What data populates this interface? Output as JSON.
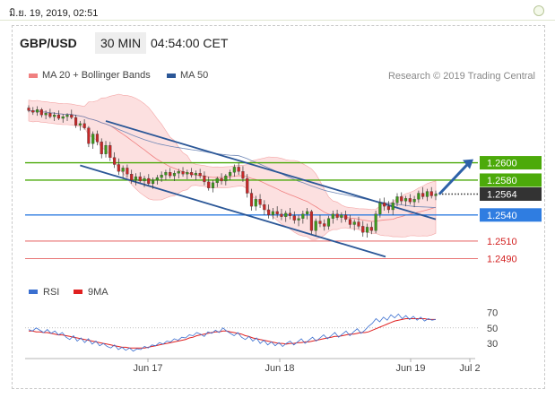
{
  "timestamp": "มิ.ย. 19, 2019, 02:51",
  "header": {
    "symbol": "GBP/USD",
    "timeframe": "30 MIN",
    "time": "04:54:00 CET"
  },
  "legend": {
    "ma20": {
      "label": "MA 20 + Bollinger Bands",
      "color": "#f08080"
    },
    "ma50": {
      "label": "MA 50",
      "color": "#2b5797"
    }
  },
  "credit": "Research © 2019 Trading Central",
  "chart_data": [
    {
      "type": "candlestick",
      "x_ticks": [
        "Jun 17",
        "Jun 18",
        "Jun 19",
        "Jul 2"
      ],
      "ylim": [
        1.2478,
        1.2684
      ],
      "candles_ohlc": [
        [
          1.2663,
          1.2666,
          1.2658,
          1.266
        ],
        [
          1.266,
          1.2664,
          1.2655,
          1.2658
        ],
        [
          1.2658,
          1.2665,
          1.2654,
          1.2661
        ],
        [
          1.2661,
          1.2663,
          1.2652,
          1.2655
        ],
        [
          1.2655,
          1.266,
          1.265,
          1.2657
        ],
        [
          1.2657,
          1.2662,
          1.2651,
          1.2653
        ],
        [
          1.2653,
          1.2658,
          1.2648,
          1.2655
        ],
        [
          1.2655,
          1.266,
          1.2649,
          1.2651
        ],
        [
          1.2651,
          1.2656,
          1.2646,
          1.2653
        ],
        [
          1.2653,
          1.2657,
          1.2648,
          1.2655
        ],
        [
          1.2655,
          1.2661,
          1.265,
          1.2652
        ],
        [
          1.2652,
          1.2655,
          1.264,
          1.2643
        ],
        [
          1.2643,
          1.2648,
          1.2637,
          1.2645
        ],
        [
          1.2645,
          1.265,
          1.2638,
          1.264
        ],
        [
          1.264,
          1.2642,
          1.2618,
          1.2622
        ],
        [
          1.2622,
          1.2636,
          1.2616,
          1.2633
        ],
        [
          1.2633,
          1.2637,
          1.262,
          1.2624
        ],
        [
          1.2624,
          1.2628,
          1.2605,
          1.261
        ],
        [
          1.261,
          1.2625,
          1.2606,
          1.262
        ],
        [
          1.262,
          1.2624,
          1.2602,
          1.2606
        ],
        [
          1.2606,
          1.2612,
          1.2594,
          1.2598
        ],
        [
          1.2598,
          1.2605,
          1.2586,
          1.259
        ],
        [
          1.259,
          1.2597,
          1.2582,
          1.2594
        ],
        [
          1.2594,
          1.2598,
          1.2583,
          1.2587
        ],
        [
          1.2587,
          1.2592,
          1.2576,
          1.258
        ],
        [
          1.258,
          1.2588,
          1.2574,
          1.2584
        ],
        [
          1.2584,
          1.2589,
          1.2577,
          1.2579
        ],
        [
          1.2579,
          1.2585,
          1.2572,
          1.2582
        ],
        [
          1.2582,
          1.2587,
          1.2574,
          1.2576
        ],
        [
          1.2576,
          1.2583,
          1.257,
          1.258
        ],
        [
          1.258,
          1.2586,
          1.2575,
          1.2583
        ],
        [
          1.2583,
          1.259,
          1.2578,
          1.2586
        ],
        [
          1.2586,
          1.2592,
          1.258,
          1.2589
        ],
        [
          1.2589,
          1.2594,
          1.2582,
          1.2585
        ],
        [
          1.2585,
          1.2591,
          1.2579,
          1.2588
        ],
        [
          1.2588,
          1.2593,
          1.2582,
          1.259
        ],
        [
          1.259,
          1.2595,
          1.2584,
          1.2587
        ],
        [
          1.2587,
          1.2592,
          1.2581,
          1.2589
        ],
        [
          1.2589,
          1.2594,
          1.2583,
          1.2586
        ],
        [
          1.2586,
          1.2591,
          1.258,
          1.2588
        ],
        [
          1.2588,
          1.2593,
          1.2582,
          1.2585
        ],
        [
          1.2585,
          1.259,
          1.2574,
          1.2578
        ],
        [
          1.2578,
          1.2584,
          1.2568,
          1.2571
        ],
        [
          1.2571,
          1.258,
          1.2566,
          1.2577
        ],
        [
          1.2577,
          1.2584,
          1.2572,
          1.2582
        ],
        [
          1.2582,
          1.2588,
          1.2575,
          1.2579
        ],
        [
          1.2579,
          1.2587,
          1.2574,
          1.2585
        ],
        [
          1.2585,
          1.2592,
          1.258,
          1.2589
        ],
        [
          1.2589,
          1.2598,
          1.2584,
          1.2595
        ],
        [
          1.2595,
          1.26,
          1.2586,
          1.259
        ],
        [
          1.259,
          1.2596,
          1.2578,
          1.2582
        ],
        [
          1.2582,
          1.2587,
          1.256,
          1.2565
        ],
        [
          1.2565,
          1.257,
          1.2545,
          1.255
        ],
        [
          1.255,
          1.2562,
          1.2545,
          1.2558
        ],
        [
          1.2558,
          1.2564,
          1.2548,
          1.2552
        ],
        [
          1.2552,
          1.2557,
          1.254,
          1.2546
        ],
        [
          1.2546,
          1.2552,
          1.2536,
          1.254
        ],
        [
          1.254,
          1.2548,
          1.2535,
          1.2544
        ],
        [
          1.2544,
          1.255,
          1.2537,
          1.2541
        ],
        [
          1.2541,
          1.2547,
          1.2534,
          1.2538
        ],
        [
          1.2538,
          1.2545,
          1.2532,
          1.2542
        ],
        [
          1.2542,
          1.2548,
          1.2535,
          1.2539
        ],
        [
          1.2539,
          1.2544,
          1.253,
          1.2534
        ],
        [
          1.2534,
          1.254,
          1.2527,
          1.2536
        ],
        [
          1.2536,
          1.2545,
          1.253,
          1.2541
        ],
        [
          1.2541,
          1.2548,
          1.2535,
          1.2544
        ],
        [
          1.2544,
          1.2546,
          1.2518,
          1.2522
        ],
        [
          1.2522,
          1.2536,
          1.2516,
          1.2533
        ],
        [
          1.2533,
          1.254,
          1.2526,
          1.253
        ],
        [
          1.253,
          1.2535,
          1.2522,
          1.2527
        ],
        [
          1.2527,
          1.2539,
          1.2523,
          1.2536
        ],
        [
          1.2536,
          1.2545,
          1.253,
          1.2541
        ],
        [
          1.2541,
          1.2546,
          1.2534,
          1.2537
        ],
        [
          1.2537,
          1.2543,
          1.2531,
          1.254
        ],
        [
          1.254,
          1.2545,
          1.2532,
          1.2535
        ],
        [
          1.2535,
          1.254,
          1.2525,
          1.2529
        ],
        [
          1.2529,
          1.2535,
          1.2522,
          1.2532
        ],
        [
          1.2532,
          1.2538,
          1.2524,
          1.2527
        ],
        [
          1.2527,
          1.2533,
          1.2515,
          1.252
        ],
        [
          1.252,
          1.253,
          1.2514,
          1.2526
        ],
        [
          1.2526,
          1.2532,
          1.2518,
          1.2522
        ],
        [
          1.2522,
          1.2545,
          1.2519,
          1.2541
        ],
        [
          1.2541,
          1.2559,
          1.2537,
          1.2554
        ],
        [
          1.2554,
          1.256,
          1.2545,
          1.255
        ],
        [
          1.255,
          1.2556,
          1.2542,
          1.2546
        ],
        [
          1.2546,
          1.2558,
          1.254,
          1.2554
        ],
        [
          1.2554,
          1.2565,
          1.255,
          1.2561
        ],
        [
          1.2561,
          1.2566,
          1.2552,
          1.2556
        ],
        [
          1.2556,
          1.2562,
          1.255,
          1.2559
        ],
        [
          1.2559,
          1.2564,
          1.2552,
          1.2555
        ],
        [
          1.2555,
          1.2562,
          1.2549,
          1.2558
        ],
        [
          1.2558,
          1.2568,
          1.2554,
          1.2565
        ],
        [
          1.2565,
          1.2572,
          1.2558,
          1.2561
        ],
        [
          1.2561,
          1.257,
          1.2556,
          1.2567
        ],
        [
          1.2567,
          1.2572,
          1.2559,
          1.2562
        ],
        [
          1.2562,
          1.2568,
          1.2557,
          1.2564
        ]
      ],
      "levels": [
        {
          "value": "1.2600",
          "color": "#4caa0a",
          "style": "solid"
        },
        {
          "value": "1.2580",
          "color": "#4caa0a",
          "style": "solid"
        },
        {
          "value": "1.2564",
          "color": "#333333",
          "style": "dotted"
        },
        {
          "value": "1.2540",
          "color": "#2f7de1",
          "style": "solid"
        },
        {
          "value": "1.2510",
          "color": "#e04848",
          "style": "solid"
        },
        {
          "value": "1.2490",
          "color": "#e04848",
          "style": "solid"
        }
      ],
      "forecast_arrow": {
        "from": 1.2564,
        "to": 1.2604
      }
    },
    {
      "type": "line",
      "legend": [
        {
          "name": "RSI",
          "color": "#3a6fd0"
        },
        {
          "name": "9MA",
          "color": "#e02020"
        }
      ],
      "y_ticks": [
        70,
        50,
        30
      ],
      "ylim": [
        15,
        80
      ],
      "rsi": [
        48,
        46,
        50,
        47,
        44,
        48,
        43,
        46,
        41,
        44,
        38,
        35,
        40,
        33,
        37,
        31,
        36,
        29,
        33,
        27,
        30,
        26,
        24,
        28,
        22,
        25,
        21,
        24,
        20,
        23,
        22,
        26,
        24,
        28,
        27,
        31,
        29,
        33,
        32,
        36,
        34,
        38,
        37,
        41,
        40,
        44,
        42,
        39,
        45,
        43,
        47,
        44,
        50,
        46,
        43,
        40,
        44,
        38,
        35,
        39,
        33,
        37,
        30,
        34,
        28,
        32,
        27,
        31,
        26,
        30,
        33,
        28,
        32,
        36,
        30,
        34,
        38,
        33,
        37,
        41,
        36,
        40,
        44,
        38,
        42,
        46,
        40,
        45,
        49,
        43,
        47,
        52,
        56,
        62,
        58,
        64,
        60,
        67,
        63,
        68,
        62,
        66,
        61,
        65,
        60,
        64,
        59,
        62,
        60,
        61
      ],
      "ma9": [
        46,
        46,
        45,
        45,
        44,
        44,
        43,
        42,
        41,
        41,
        40,
        39,
        38,
        37,
        36,
        35,
        34,
        33,
        32,
        31,
        30,
        29,
        28,
        27,
        26,
        25,
        25,
        24,
        24,
        24,
        24,
        24,
        25,
        26,
        27,
        28,
        29,
        30,
        31,
        32,
        33,
        34,
        35,
        37,
        38,
        40,
        41,
        42,
        43,
        44,
        45,
        45,
        46,
        46,
        45,
        44,
        43,
        42,
        40,
        39,
        37,
        36,
        35,
        34,
        33,
        32,
        31,
        30,
        30,
        29,
        30,
        30,
        31,
        31,
        32,
        32,
        33,
        34,
        35,
        36,
        37,
        38,
        39,
        39,
        40,
        41,
        42,
        42,
        43,
        44,
        44,
        45,
        47,
        49,
        51,
        53,
        55,
        57,
        59,
        60,
        61,
        62,
        62,
        62,
        62,
        62,
        62,
        61,
        61,
        61
      ]
    }
  ]
}
